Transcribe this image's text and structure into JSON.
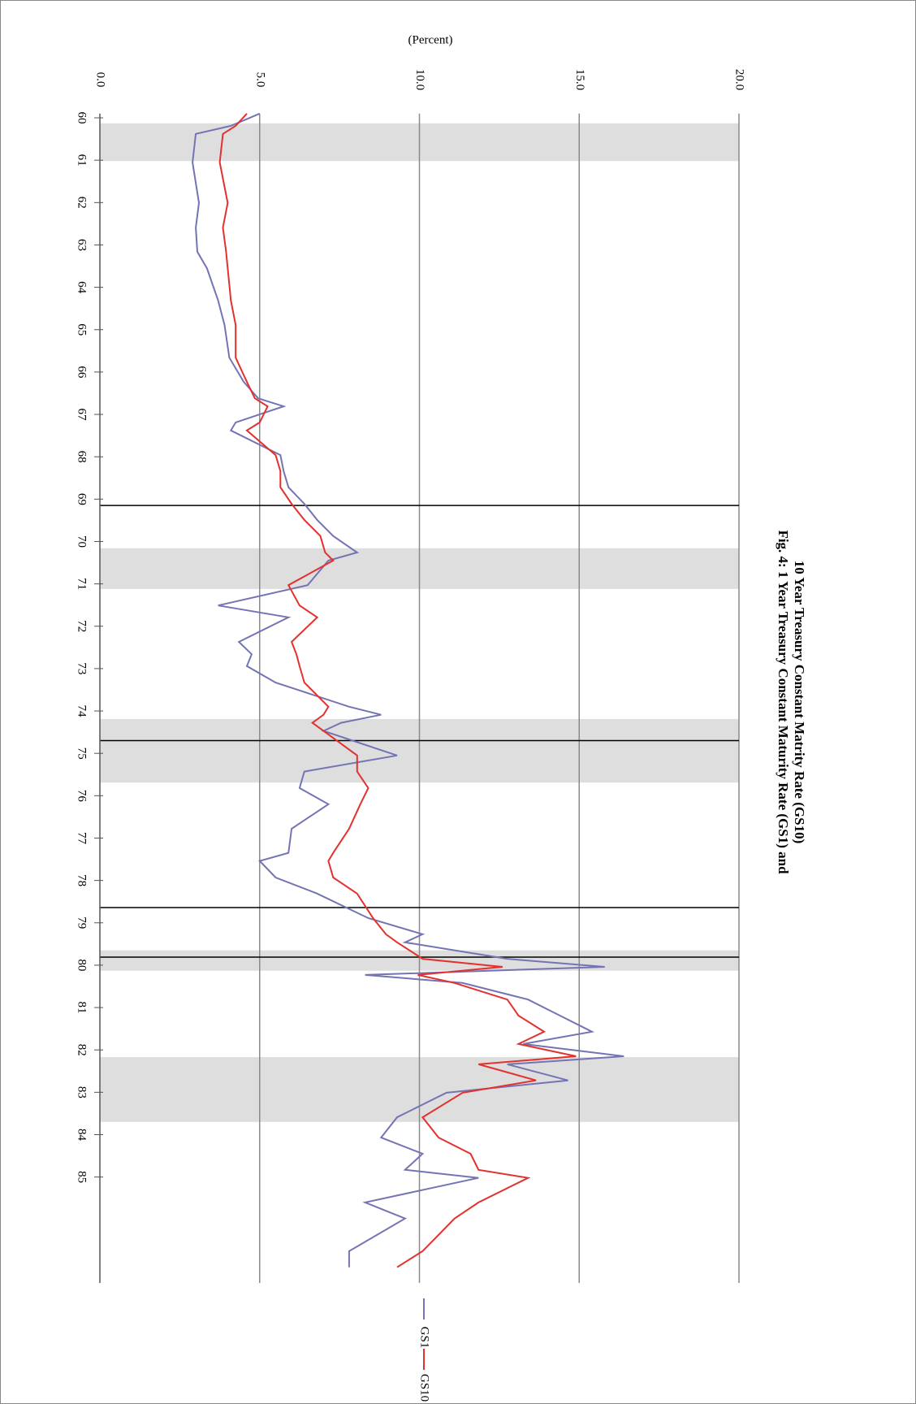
{
  "chart_data": {
    "type": "line",
    "title": [
      "Fig. 4: 1 Year Treasury Constant Maturity Rate (GS1) and",
      "10 Year  Treasury Constant Matrity Rate (GS10)"
    ],
    "y_label": "(Percent)",
    "x": [
      59.9,
      60.19,
      60.38,
      61.05,
      62.01,
      62.59,
      63.16,
      63.55,
      64.31,
      64.89,
      65.66,
      66.23,
      66.62,
      66.81,
      67.19,
      67.38,
      67.96,
      68.34,
      68.72,
      69.11,
      69.49,
      69.87,
      70.26,
      70.45,
      71.03,
      71.51,
      71.79,
      72.37,
      72.66,
      72.94,
      73.33,
      73.9,
      74.09,
      74.28,
      74.47,
      75.05,
      75.43,
      75.82,
      76.2,
      76.78,
      77.35,
      77.54,
      77.93,
      78.31,
      78.89,
      79.27,
      79.46,
      79.85,
      80.04,
      80.23,
      80.42,
      80.81,
      81.19,
      81.57,
      81.86,
      82.15,
      82.34,
      82.72,
      83.01,
      83.59,
      84.07,
      84.45,
      84.83,
      85.02,
      85.6,
      85.98,
      86.75,
      87.13
    ],
    "series": [
      {
        "name": "GS1",
        "color": "#7474b4",
        "values": [
          5.0,
          4.1,
          3.0,
          2.9,
          3.1,
          3.0,
          3.05,
          3.35,
          3.7,
          3.9,
          4.05,
          4.5,
          4.95,
          5.75,
          4.25,
          4.1,
          5.65,
          5.75,
          5.9,
          6.4,
          6.8,
          7.3,
          8.05,
          7.15,
          6.5,
          3.7,
          5.9,
          4.35,
          4.75,
          4.6,
          5.5,
          7.8,
          8.8,
          7.55,
          7.0,
          9.3,
          6.4,
          6.25,
          7.15,
          6.0,
          5.9,
          5.0,
          5.5,
          6.8,
          8.4,
          10.1,
          9.55,
          12.75,
          15.8,
          8.3,
          11.35,
          13.4,
          14.4,
          15.4,
          13.25,
          16.4,
          12.75,
          14.65,
          10.85,
          9.3,
          8.8,
          10.1,
          9.55,
          11.85,
          8.3,
          9.55,
          7.8,
          7.8
        ]
      },
      {
        "name": "GS10",
        "color": "#e3312e",
        "values": [
          4.6,
          4.25,
          3.85,
          3.75,
          4.0,
          3.85,
          3.95,
          4.0,
          4.1,
          4.25,
          4.25,
          4.6,
          4.85,
          5.25,
          5.0,
          4.6,
          5.5,
          5.65,
          5.65,
          6.0,
          6.4,
          6.9,
          7.05,
          7.3,
          5.9,
          6.25,
          6.8,
          6.0,
          6.15,
          6.25,
          6.4,
          7.15,
          7.0,
          6.65,
          7.0,
          8.05,
          8.05,
          8.4,
          8.15,
          7.8,
          7.3,
          7.15,
          7.3,
          8.05,
          8.55,
          8.95,
          9.3,
          10.1,
          12.6,
          9.95,
          11.1,
          12.75,
          13.1,
          13.9,
          13.1,
          14.9,
          11.85,
          13.65,
          11.35,
          10.1,
          10.6,
          11.6,
          11.85,
          13.4,
          11.85,
          11.1,
          10.1,
          9.3
        ]
      }
    ],
    "xlim": [
      59.9,
      87.5
    ],
    "xticks": [
      60,
      61,
      62,
      63,
      64,
      65,
      66,
      67,
      68,
      69,
      70,
      71,
      72,
      73,
      74,
      75,
      76,
      77,
      78,
      79,
      80,
      81,
      82,
      83,
      84,
      85
    ],
    "ylim": [
      0,
      20
    ],
    "yticks": [
      {
        "value": 0,
        "label": "0.0"
      },
      {
        "value": 5,
        "label": "5.0"
      },
      {
        "value": 10,
        "label": "10.0"
      },
      {
        "value": 15,
        "label": "15.0"
      },
      {
        "value": 20,
        "label": "20.0"
      }
    ],
    "recessions": [
      [
        60.13,
        61.02
      ],
      [
        70.16,
        71.12
      ],
      [
        74.19,
        75.69
      ],
      [
        79.65,
        80.13
      ],
      [
        82.17,
        83.7
      ]
    ],
    "vertical_lines": [
      69.15,
      74.7,
      78.64,
      79.81
    ],
    "grid": true,
    "legend": "bottom"
  }
}
